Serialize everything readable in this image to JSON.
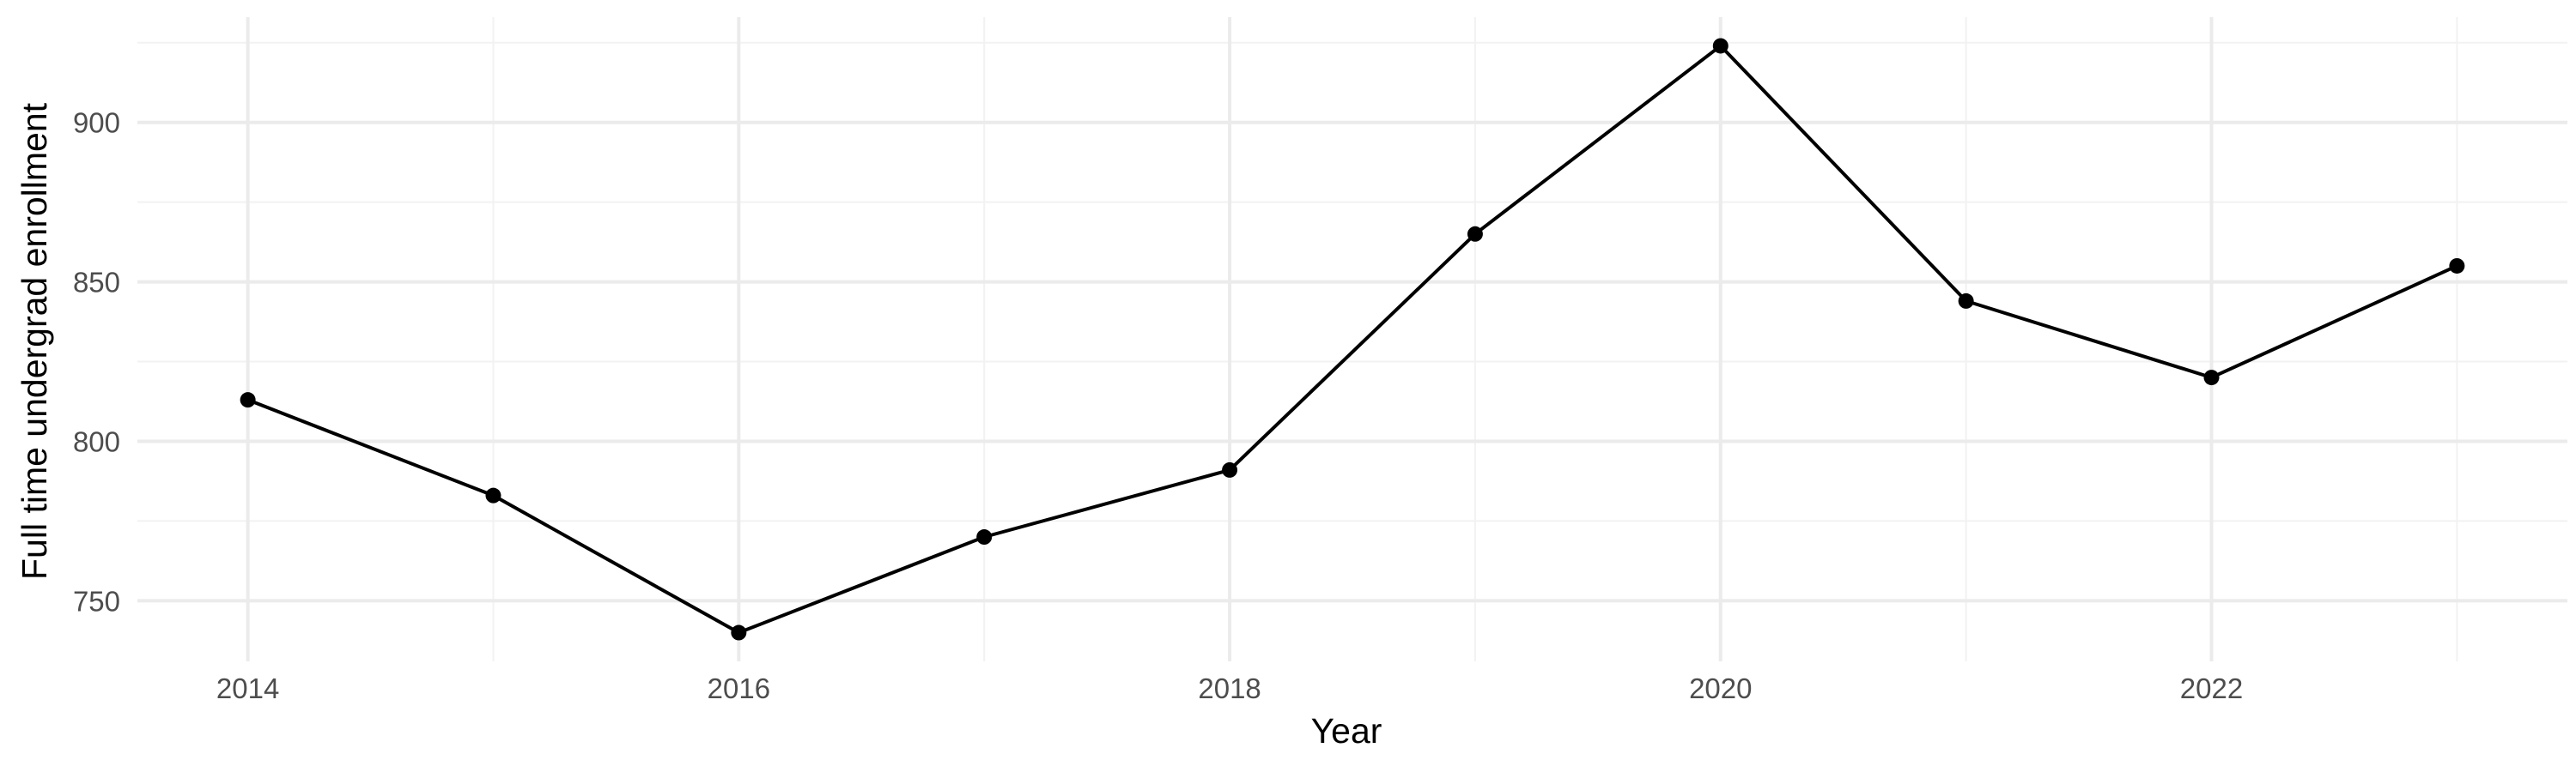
{
  "chart_data": {
    "type": "line",
    "title": "",
    "xlabel": "Year",
    "ylabel": "Full time undergrad enrollment",
    "x": [
      2014,
      2015,
      2016,
      2017,
      2018,
      2019,
      2020,
      2021,
      2022,
      2023
    ],
    "series": [
      {
        "values": [
          813,
          783,
          740,
          770,
          791,
          865,
          924,
          844,
          820,
          855
        ]
      }
    ],
    "x_ticks": [
      2014,
      2016,
      2018,
      2020,
      2022
    ],
    "y_ticks": [
      750,
      800,
      850,
      900
    ],
    "xlim": [
      2013.55,
      2023.45
    ],
    "ylim": [
      731,
      933
    ],
    "grid": true,
    "legend": "none",
    "colors": {
      "line": "#000000",
      "point": "#000000",
      "grid_major": "#ebebeb",
      "grid_minor": "#f2f2f2",
      "tick_text": "#4d4d4d"
    }
  }
}
